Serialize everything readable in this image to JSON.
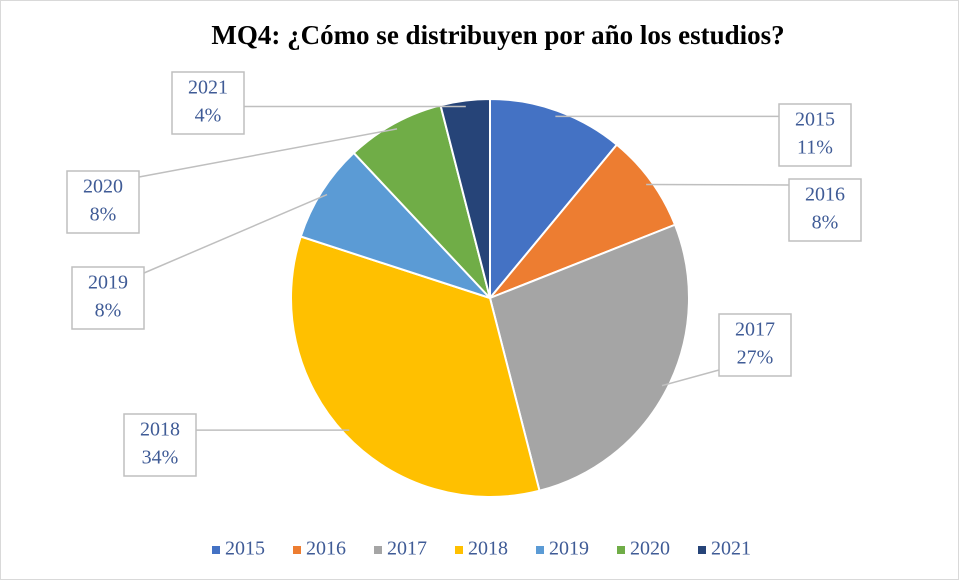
{
  "chart_data": {
    "type": "pie",
    "title": "MQ4: ¿Cómo se distribuyen por año los estudios?",
    "categories": [
      "2015",
      "2016",
      "2017",
      "2018",
      "2019",
      "2020",
      "2021"
    ],
    "values": [
      11,
      8,
      27,
      34,
      8,
      8,
      4
    ],
    "value_labels": [
      "11%",
      "8%",
      "27%",
      "34%",
      "8%",
      "8%",
      "4%"
    ],
    "colors": [
      "#4472c4",
      "#ed7d31",
      "#a5a5a5",
      "#ffc000",
      "#5b9bd5",
      "#70ad47",
      "#264478"
    ],
    "legend": "bottom"
  }
}
